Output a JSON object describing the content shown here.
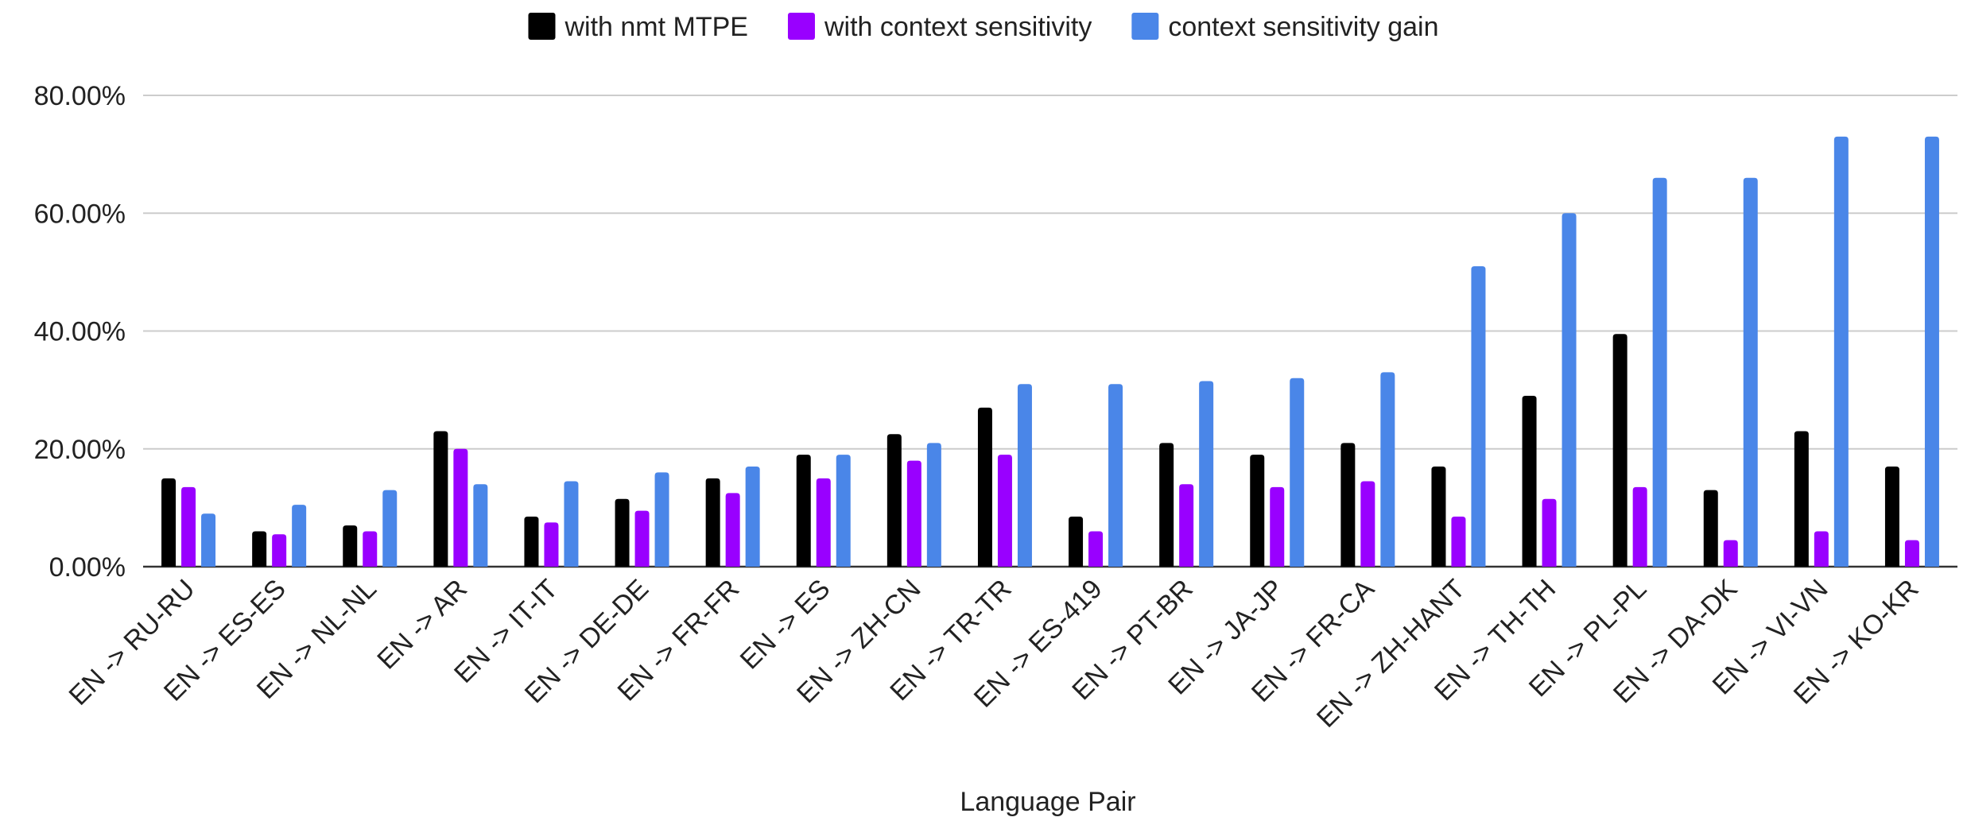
{
  "chart_data": {
    "type": "bar",
    "xlabel": "Language Pair",
    "ylabel": "",
    "ylim": [
      0,
      80
    ],
    "ytick_values": [
      0,
      20,
      40,
      60,
      80
    ],
    "ytick_labels": [
      "0.00%",
      "20.00%",
      "40.00%",
      "60.00%",
      "80.00%"
    ],
    "grid": true,
    "legend_position": "top-center",
    "categories": [
      "EN -> RU-RU",
      "EN -> ES-ES",
      "EN -> NL-NL",
      "EN -> AR",
      "EN -> IT-IT",
      "EN -> DE-DE",
      "EN -> FR-FR",
      "EN -> ES",
      "EN -> ZH-CN",
      "EN -> TR-TR",
      "EN -> ES-419",
      "EN -> PT-BR",
      "EN -> JA-JP",
      "EN -> FR-CA",
      "EN -> ZH-HANT",
      "EN -> TH-TH",
      "EN -> PL-PL",
      "EN -> DA-DK",
      "EN -> VI-VN",
      "EN -> KO-KR"
    ],
    "series": [
      {
        "name": "with nmt MTPE",
        "color": "#000000",
        "values": [
          15,
          6,
          7,
          23,
          8.5,
          11.5,
          15,
          19,
          22.5,
          27,
          8.5,
          21,
          19,
          21,
          17,
          29,
          39.5,
          13,
          23,
          17
        ]
      },
      {
        "name": "with context sensitivity",
        "color": "#9900ff",
        "values": [
          13.5,
          5.5,
          6,
          20,
          7.5,
          9.5,
          12.5,
          15,
          18,
          19,
          6,
          14,
          13.5,
          14.5,
          8.5,
          11.5,
          13.5,
          4.5,
          6,
          4.5
        ]
      },
      {
        "name": "context sensitivity gain",
        "color": "#4a86e8",
        "values": [
          9,
          10.5,
          13,
          14,
          14.5,
          16,
          17,
          19,
          21,
          31,
          31,
          31.5,
          32,
          33,
          51,
          60,
          66,
          66,
          73,
          73
        ]
      }
    ]
  }
}
